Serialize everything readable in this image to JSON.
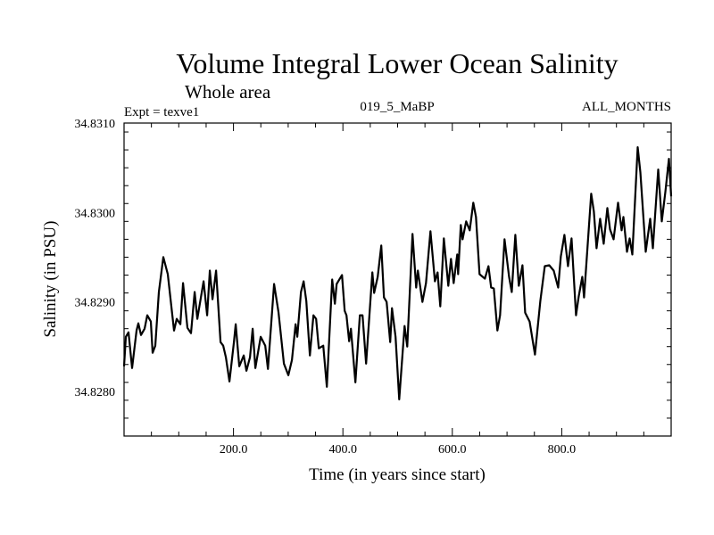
{
  "chart_data": {
    "type": "line",
    "title": "Volume Integral Lower Ocean Salinity",
    "subtitle": "Whole area",
    "annotations": {
      "left": "Expt = texve1",
      "center": "019_5_MaBP",
      "right": "ALL_MONTHS"
    },
    "xlabel": "Time (in years since start)",
    "ylabel": "Salinity (in PSU)",
    "xlim": [
      0,
      1000
    ],
    "ylim": [
      34.8275,
      34.831
    ],
    "x_ticks": [
      200,
      400,
      600,
      800
    ],
    "x_tick_labels": [
      "200.0",
      "400.0",
      "600.0",
      "800.0"
    ],
    "x_minor_step": 50,
    "y_ticks": [
      34.828,
      34.829,
      34.83,
      34.831
    ],
    "y_tick_labels": [
      "34.8280",
      "34.8290",
      "34.8300",
      "34.8310"
    ],
    "y_minor_step": 0.0002,
    "grid": false,
    "line_color": "#000000",
    "series": [
      {
        "name": "Salinity",
        "x": [
          0,
          3.3,
          8.2,
          14.7,
          22.9,
          26.1,
          31.0,
          37.6,
          42.4,
          49.0,
          52.2,
          57.1,
          63.7,
          71.8,
          80.0,
          88.2,
          91.4,
          96.3,
          102.9,
          107.8,
          115.9,
          122.4,
          129.0,
          133.9,
          145.3,
          151.8,
          156.7,
          161.6,
          168.2,
          176.3,
          181.2,
          186.1,
          192.7,
          200.8,
          204.1,
          210.6,
          218.8,
          223.7,
          230.2,
          235.1,
          240.0,
          249.8,
          258.0,
          262.9,
          274.3,
          282.4,
          292.2,
          300.4,
          306.9,
          313.5,
          316.7,
          323.3,
          328.2,
          333.1,
          339.6,
          346.1,
          351.0,
          355.9,
          364.1,
          370.6,
          380.4,
          385.3,
          388.6,
          398.4,
          403.3,
          406.5,
          411.4,
          414.7,
          422.9,
          431.0,
          435.9,
          442.4,
          453.9,
          457.1,
          463.7,
          470.2,
          475.1,
          480.0,
          486.5,
          489.8,
          496.3,
          502.9,
          512.7,
          517.6,
          527.3,
          533.9,
          537.1,
          545.3,
          551.8,
          560.0,
          568.2,
          573.1,
          578.0,
          584.5,
          592.7,
          597.6,
          602.4,
          609.0,
          610.6,
          615.5,
          618.8,
          625.3,
          631.8,
          638.4,
          643.3,
          649.8,
          659.6,
          666.1,
          671.0,
          675.9,
          682.4,
          687.3,
          695.5,
          703.7,
          708.6,
          715.1,
          721.6,
          728.2,
          733.1,
          741.2,
          751.0,
          760.8,
          769.0,
          777.1,
          785.3,
          793.5,
          798.4,
          804.9,
          811.4,
          818.0,
          826.1,
          831.0,
          837.6,
          840.8,
          853.9,
          858.8,
          863.7,
          870.2,
          876.7,
          883.3,
          888.2,
          894.7,
          902.9,
          909.4,
          912.7,
          919.2,
          924.1,
          929.0,
          938.8,
          943.7,
          953.5,
          961.6,
          966.5,
          976.3,
          982.9,
          989.4,
          995.9,
          1000.0
        ],
        "y": [
          34.82828,
          34.82861,
          34.82866,
          34.82826,
          34.82868,
          34.82876,
          34.82863,
          34.8287,
          34.82885,
          34.82878,
          34.82843,
          34.82851,
          34.82911,
          34.8295,
          34.82931,
          34.82885,
          34.82868,
          34.82881,
          34.82875,
          34.82921,
          34.82871,
          34.82865,
          34.82911,
          34.82881,
          34.82923,
          34.82885,
          34.82935,
          34.82903,
          34.82935,
          34.82855,
          34.82851,
          34.82838,
          34.82811,
          34.82855,
          34.82875,
          34.82828,
          34.8284,
          34.82823,
          34.82838,
          34.8287,
          34.82826,
          34.82861,
          34.82851,
          34.82825,
          34.8292,
          34.82888,
          34.82831,
          34.82818,
          34.82835,
          34.82875,
          34.82861,
          34.82911,
          34.82923,
          34.82901,
          34.8284,
          34.82885,
          34.82881,
          34.82848,
          34.82851,
          34.82805,
          34.82925,
          34.82898,
          34.8292,
          34.8293,
          34.8289,
          34.82885,
          34.82856,
          34.8287,
          34.8281,
          34.82885,
          34.82885,
          34.82831,
          34.82933,
          34.8291,
          34.82928,
          34.82963,
          34.82905,
          34.829,
          34.82855,
          34.82893,
          34.82861,
          34.82791,
          34.82873,
          34.8285,
          34.82976,
          34.82916,
          34.82935,
          34.829,
          34.82921,
          34.82979,
          34.82923,
          34.82933,
          34.82895,
          34.82971,
          34.82918,
          34.82948,
          34.82921,
          34.82953,
          34.82931,
          34.82986,
          34.8297,
          34.8299,
          34.8298,
          34.83011,
          34.82995,
          34.82931,
          34.82926,
          34.8294,
          34.82916,
          34.82915,
          34.82868,
          34.82885,
          34.8297,
          34.82928,
          34.82911,
          34.82975,
          34.82918,
          34.82941,
          34.82888,
          34.82878,
          34.82841,
          34.82901,
          34.8294,
          34.82941,
          34.82935,
          34.82916,
          34.82951,
          34.82975,
          34.8294,
          34.82971,
          34.82885,
          34.82906,
          34.82928,
          34.82905,
          34.83021,
          34.83001,
          34.8296,
          34.82993,
          34.82965,
          34.83005,
          34.82981,
          34.8297,
          34.83011,
          34.8298,
          34.82995,
          34.82956,
          34.82971,
          34.82953,
          34.83073,
          34.83045,
          34.82956,
          34.82993,
          34.8296,
          34.83048,
          34.8299,
          34.83023,
          34.8306,
          34.83018
        ]
      }
    ]
  }
}
